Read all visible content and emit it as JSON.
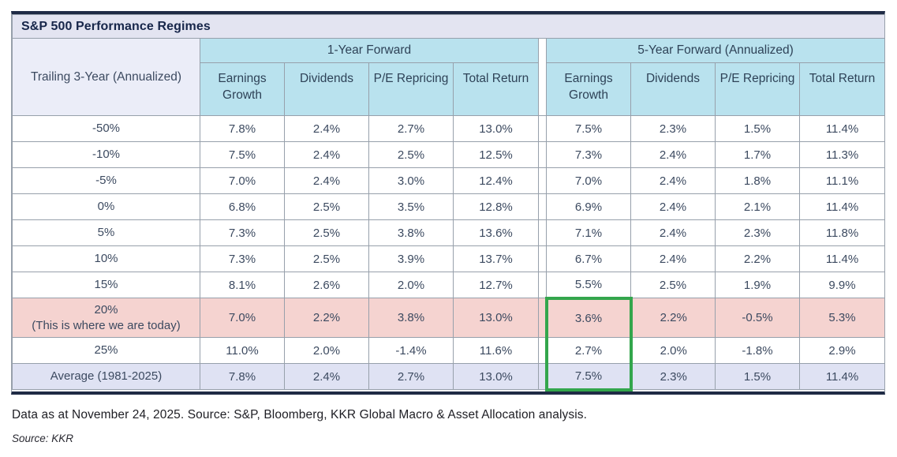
{
  "title": "S&P 500 Performance Regimes",
  "footnote": "Data as at November 24, 2025. Source: S&P, Bloomberg, KKR Global Macro & Asset Allocation analysis.",
  "source_line": "Source: KKR",
  "colors": {
    "frame_navy": "#1f2b45",
    "border_gray": "#97a0ab",
    "title_bar_bg": "#e3e4f1",
    "header_cyan": "#b9e2ee",
    "row_header_bg": "#ebedf8",
    "highlight_pink": "#f5d3d0",
    "highlight_lavender": "#dfe2f3",
    "green_box": "#33a64c",
    "text": "#3c4a60"
  },
  "chart_data": {
    "type": "table",
    "title": "S&P 500 Performance Regimes",
    "row_header_label": "Trailing 3-Year (Annualized)",
    "column_groups": [
      {
        "label": "1-Year Forward",
        "span": 4
      },
      {
        "label": "5-Year Forward (Annualized)",
        "span": 4
      }
    ],
    "columns": [
      "Earnings Growth",
      "Dividends",
      "P/E Repricing",
      "Total Return",
      "Earnings Growth",
      "Dividends",
      "P/E Repricing",
      "Total Return"
    ],
    "rows": [
      {
        "label": "-50%",
        "values": [
          "7.8%",
          "2.4%",
          "2.7%",
          "13.0%",
          "7.5%",
          "2.3%",
          "1.5%",
          "11.4%"
        ],
        "highlight": "none"
      },
      {
        "label": "-10%",
        "values": [
          "7.5%",
          "2.4%",
          "2.5%",
          "12.5%",
          "7.3%",
          "2.4%",
          "1.7%",
          "11.3%"
        ],
        "highlight": "none"
      },
      {
        "label": "-5%",
        "values": [
          "7.0%",
          "2.4%",
          "3.0%",
          "12.4%",
          "7.0%",
          "2.4%",
          "1.8%",
          "11.1%"
        ],
        "highlight": "none"
      },
      {
        "label": "0%",
        "values": [
          "6.8%",
          "2.5%",
          "3.5%",
          "12.8%",
          "6.9%",
          "2.4%",
          "2.1%",
          "11.4%"
        ],
        "highlight": "none"
      },
      {
        "label": "5%",
        "values": [
          "7.3%",
          "2.5%",
          "3.8%",
          "13.6%",
          "7.1%",
          "2.4%",
          "2.3%",
          "11.8%"
        ],
        "highlight": "none"
      },
      {
        "label": "10%",
        "values": [
          "7.3%",
          "2.5%",
          "3.9%",
          "13.7%",
          "6.7%",
          "2.4%",
          "2.2%",
          "11.4%"
        ],
        "highlight": "none"
      },
      {
        "label": "15%",
        "values": [
          "8.1%",
          "2.6%",
          "2.0%",
          "12.7%",
          "5.5%",
          "2.5%",
          "1.9%",
          "9.9%"
        ],
        "highlight": "none"
      },
      {
        "label": "20%",
        "label_note": "(This is where we are today)",
        "values": [
          "7.0%",
          "2.2%",
          "3.8%",
          "13.0%",
          "3.6%",
          "2.2%",
          "-0.5%",
          "5.3%"
        ],
        "highlight": "pink"
      },
      {
        "label": "25%",
        "values": [
          "11.0%",
          "2.0%",
          "-1.4%",
          "11.6%",
          "2.7%",
          "2.0%",
          "-1.8%",
          "2.9%"
        ],
        "highlight": "none"
      },
      {
        "label": "Average (1981-2025)",
        "values": [
          "7.8%",
          "2.4%",
          "2.7%",
          "13.0%",
          "7.5%",
          "2.3%",
          "1.5%",
          "11.4%"
        ],
        "highlight": "lavender"
      }
    ],
    "green_box": {
      "column_index": 4,
      "column_label": "Earnings Growth (5-Year Forward)",
      "row_indices": [
        7,
        8,
        9
      ],
      "highlighted_values": [
        "3.6%",
        "2.7%",
        "7.5%"
      ]
    }
  }
}
